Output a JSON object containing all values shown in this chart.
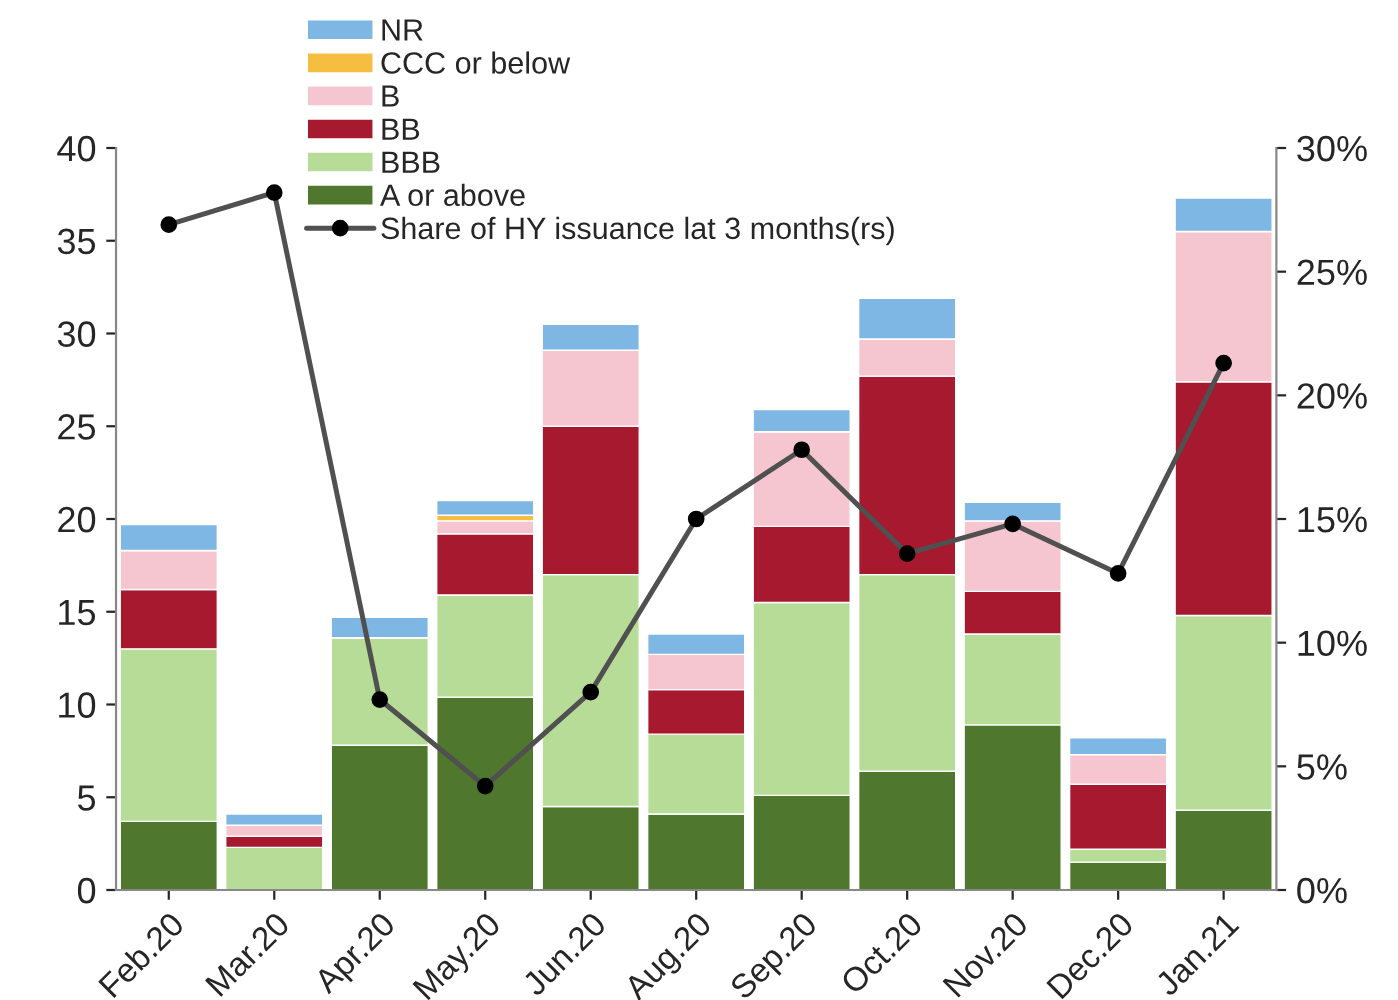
{
  "chart_data": {
    "type": "bar",
    "stacked": true,
    "categories": [
      "Feb.20",
      "Mar.20",
      "Apr.20",
      "May.20",
      "Jun.20",
      "Aug.20",
      "Sep.20",
      "Oct.20",
      "Nov.20",
      "Dec.20",
      "Jan.21"
    ],
    "series": [
      {
        "name": "A or above",
        "color": "#4f772d",
        "values": [
          3.7,
          0,
          7.8,
          10.4,
          4.5,
          4.1,
          5.1,
          6.4,
          8.9,
          1.5,
          4.3
        ]
      },
      {
        "name": "BBB",
        "color": "#b7dc97",
        "values": [
          9.3,
          2.3,
          5.8,
          5.5,
          12.5,
          4.3,
          10.4,
          10.6,
          4.9,
          0.7,
          10.5
        ]
      },
      {
        "name": "BB",
        "color": "#a6192e",
        "values": [
          3.2,
          0.6,
          0,
          3.3,
          8.0,
          2.4,
          4.1,
          10.7,
          2.3,
          3.5,
          12.6
        ]
      },
      {
        "name": "B",
        "color": "#f5c6cf",
        "values": [
          2.1,
          0.6,
          0,
          0.7,
          4.1,
          1.9,
          5.1,
          2.0,
          3.8,
          1.6,
          8.1
        ]
      },
      {
        "name": "CCC or below",
        "color": "#f5be41",
        "values": [
          0,
          0,
          0,
          0.3,
          0,
          0,
          0,
          0,
          0,
          0,
          0
        ]
      },
      {
        "name": "NR",
        "color": "#7eb6e4",
        "values": [
          1.4,
          0.6,
          1.1,
          0.8,
          1.4,
          1.1,
          1.2,
          2.2,
          1.0,
          0.9,
          1.8
        ]
      },
      {
        "name": "Share of HY issuance lat 3 months(rs)",
        "type": "line",
        "axis": "y2",
        "color": "#505050",
        "marker": "circle",
        "values": [
          26.9,
          28.2,
          7.7,
          4.2,
          8.0,
          15.0,
          17.8,
          13.6,
          14.8,
          12.8,
          21.3
        ]
      }
    ],
    "ylim": [
      0,
      40
    ],
    "yticks": [
      0,
      5,
      10,
      15,
      20,
      25,
      30,
      35,
      40
    ],
    "y2lim": [
      0,
      30
    ],
    "y2ticks": [
      {
        "value": 0,
        "label": "0%"
      },
      {
        "value": 5,
        "label": "5%"
      },
      {
        "value": 10,
        "label": "10%"
      },
      {
        "value": 15,
        "label": "15%"
      },
      {
        "value": 20,
        "label": "20%"
      },
      {
        "value": 25,
        "label": "25%"
      },
      {
        "value": 30,
        "label": "30%"
      }
    ],
    "grid": false,
    "legend": "top"
  }
}
